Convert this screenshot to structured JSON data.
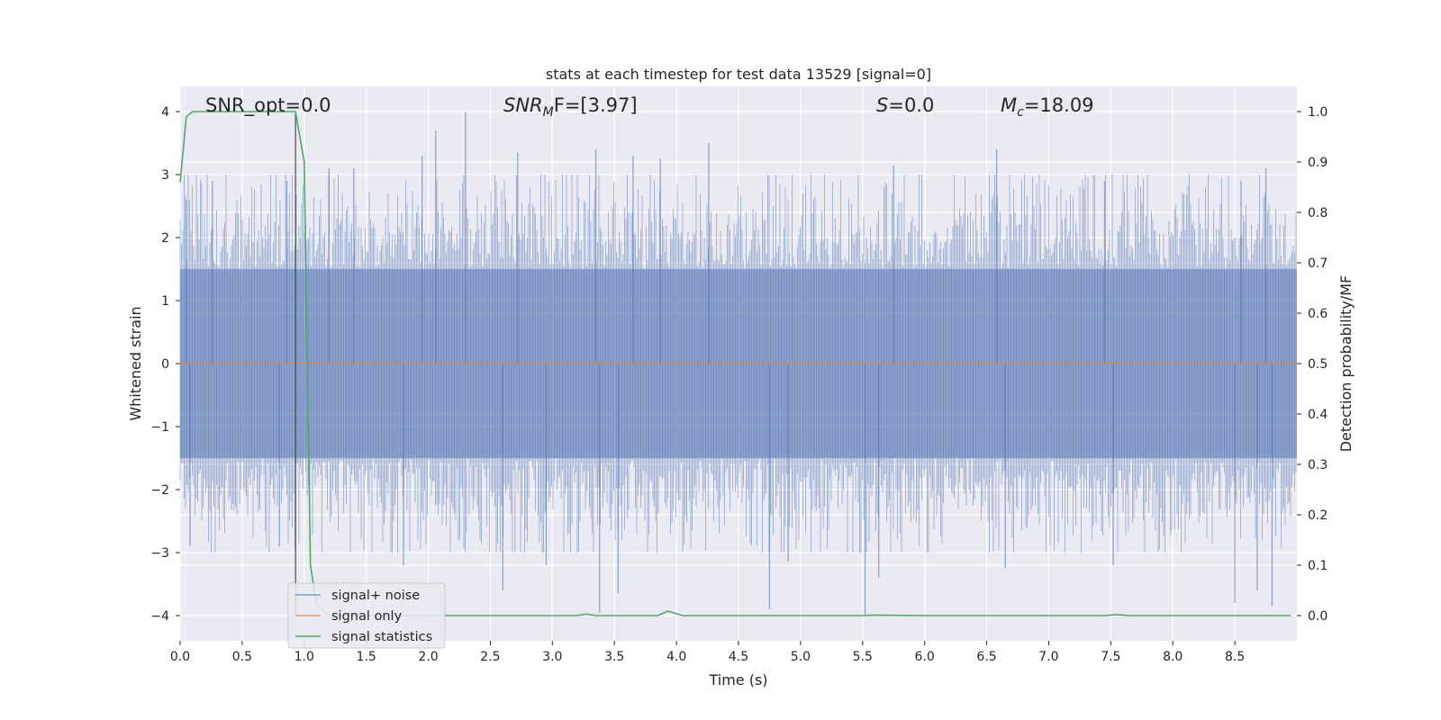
{
  "chart_data": {
    "type": "line",
    "title": "stats at each timestep for test data 13529 [signal=0]",
    "xlabel": "Time (s)",
    "ylabel": "Whitened strain",
    "ylabel_right": "Detection probability/MF",
    "xlim": [
      0,
      9
    ],
    "ylim": [
      -4.4,
      4.4
    ],
    "ylim_right": [
      -0.05,
      1.05
    ],
    "x_ticks": [
      0.0,
      0.5,
      1.0,
      1.5,
      2.0,
      2.5,
      3.0,
      3.5,
      4.0,
      4.5,
      5.0,
      5.5,
      6.0,
      6.5,
      7.0,
      7.5,
      8.0,
      8.5
    ],
    "x_tick_labels": [
      "0.0",
      "0.5",
      "1.0",
      "1.5",
      "2.0",
      "2.5",
      "3.0",
      "3.5",
      "4.0",
      "4.5",
      "5.0",
      "5.5",
      "6.0",
      "6.5",
      "7.0",
      "7.5",
      "8.0",
      "8.5"
    ],
    "y_ticks": [
      -4,
      -3,
      -2,
      -1,
      0,
      1,
      2,
      3,
      4
    ],
    "y_tick_labels": [
      "−4",
      "−3",
      "−2",
      "−1",
      "0",
      "1",
      "2",
      "3",
      "4"
    ],
    "y_ticks_right": [
      0.0,
      0.1,
      0.2,
      0.3,
      0.4,
      0.5,
      0.6,
      0.7,
      0.8,
      0.9,
      1.0
    ],
    "y_tick_labels_right": [
      "0.0",
      "0.1",
      "0.2",
      "0.3",
      "0.4",
      "0.5",
      "0.6",
      "0.7",
      "0.8",
      "0.9",
      "1.0"
    ],
    "grid": true,
    "legend_position": "lower-left",
    "annotations": {
      "snr_opt": "SNR_opt=0.0",
      "snr_mf_base": "SNR",
      "snr_mf_sub": "M",
      "snr_mf_rest": "F=[3.97]",
      "s_base": "S",
      "s_rest": "=0.0",
      "mc_base": "M",
      "mc_sub": "c",
      "mc_rest": "=18.09"
    },
    "marker_line_x": 0.93,
    "series": [
      {
        "name": "signal+ noise",
        "axis": "left",
        "color": "#4c72b0",
        "style": "noise band",
        "typical_abs_amplitude": 1.5,
        "peak_values": [
          {
            "x": 0.05,
            "y": 2.6
          },
          {
            "x": 0.26,
            "y": 2.9
          },
          {
            "x": 0.86,
            "y": 2.9
          },
          {
            "x": 1.2,
            "y": 3.1
          },
          {
            "x": 1.4,
            "y": 3.1
          },
          {
            "x": 1.95,
            "y": 3.3
          },
          {
            "x": 2.06,
            "y": 3.7
          },
          {
            "x": 2.3,
            "y": 4.0
          },
          {
            "x": 2.72,
            "y": 3.35
          },
          {
            "x": 3.35,
            "y": 3.4
          },
          {
            "x": 3.65,
            "y": 3.3
          },
          {
            "x": 3.87,
            "y": 3.25
          },
          {
            "x": 4.26,
            "y": 3.5
          },
          {
            "x": 5.75,
            "y": 3.15
          },
          {
            "x": 6.58,
            "y": 3.4
          },
          {
            "x": 7.45,
            "y": 2.9
          },
          {
            "x": 8.55,
            "y": 2.9
          },
          {
            "x": 8.75,
            "y": 3.1
          }
        ],
        "trough_values": [
          {
            "x": 0.08,
            "y": -2.9
          },
          {
            "x": 0.8,
            "y": -2.9
          },
          {
            "x": 1.8,
            "y": -3.2
          },
          {
            "x": 2.6,
            "y": -3.6
          },
          {
            "x": 2.95,
            "y": -3.2
          },
          {
            "x": 3.38,
            "y": -3.95
          },
          {
            "x": 3.53,
            "y": -3.65
          },
          {
            "x": 4.75,
            "y": -3.9
          },
          {
            "x": 4.9,
            "y": -3.15
          },
          {
            "x": 5.52,
            "y": -4.0
          },
          {
            "x": 5.63,
            "y": -3.4
          },
          {
            "x": 6.65,
            "y": -3.25
          },
          {
            "x": 7.52,
            "y": -3.2
          },
          {
            "x": 8.5,
            "y": -3.8
          },
          {
            "x": 8.68,
            "y": -3.6
          },
          {
            "x": 8.8,
            "y": -3.85
          }
        ]
      },
      {
        "name": "signal only",
        "axis": "left",
        "color": "#dd8452",
        "x": [
          0,
          9
        ],
        "y": [
          0,
          0
        ]
      },
      {
        "name": "signal statistics",
        "axis": "right",
        "color": "#55a868",
        "x": [
          0.0,
          0.05,
          0.1,
          0.15,
          0.3,
          0.5,
          0.7,
          0.93,
          1.0,
          1.05,
          1.1,
          1.2,
          1.5,
          2.0,
          2.5,
          3.0,
          3.2,
          3.27,
          3.35,
          3.5,
          3.85,
          3.93,
          4.05,
          4.2,
          5.0,
          5.5,
          5.6,
          6.0,
          7.0,
          7.45,
          7.55,
          7.65,
          8.0,
          8.5,
          8.95
        ],
        "y": [
          0.86,
          0.99,
          1.0,
          1.0,
          1.0,
          1.0,
          1.0,
          1.0,
          0.9,
          0.1,
          0.02,
          0.0,
          0.0,
          0.0,
          0.0,
          0.0,
          0.0,
          0.003,
          0.0,
          0.0,
          0.0,
          0.009,
          0.0,
          0.0,
          0.0,
          0.0,
          0.001,
          0.0,
          0.0,
          0.0,
          0.002,
          0.0,
          0.0,
          0.0,
          0.0
        ]
      }
    ]
  }
}
